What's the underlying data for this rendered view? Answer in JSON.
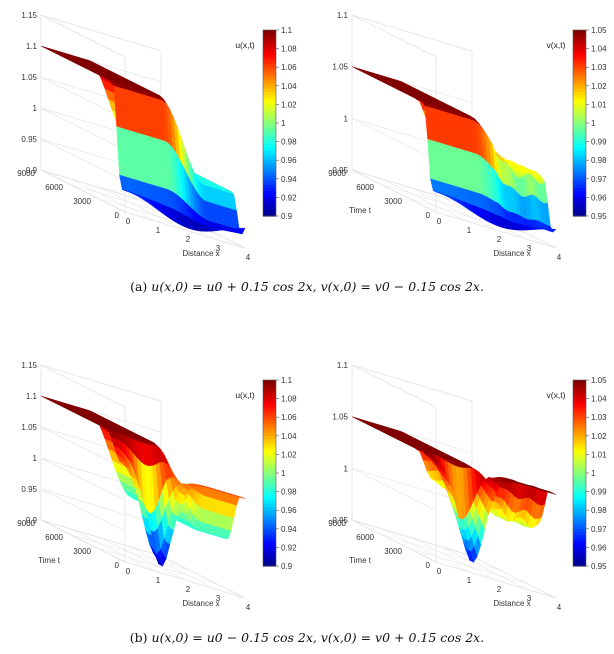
{
  "captions": [
    {
      "tag": "(a)",
      "math": "u(x,0) = u0 + 0.15 cos 2x, v(x,0) = v0 − 0.15 cos 2x."
    },
    {
      "tag": "(b)",
      "math": "u(x,0) = u0 − 0.15 cos 2x, v(x,0) = v0 + 0.15 cos 2x."
    }
  ],
  "colormap": "jet",
  "chart_data": [
    {
      "type": "surface",
      "panel": "a-left",
      "title": "u(x,t)",
      "xlabel": "Distance x",
      "ylabel": "",
      "xticks": [
        "0",
        "1",
        "2",
        "3",
        "4"
      ],
      "yticks": [
        "0",
        "3000",
        "6000",
        "9000"
      ],
      "zticks": [
        "0.9",
        "0.95",
        "1",
        "1.05",
        "1.1",
        "1.15"
      ],
      "xlim": [
        0,
        4
      ],
      "tlim": [
        0,
        9000
      ],
      "zlim": [
        0.9,
        1.15
      ],
      "colorbar": {
        "range": [
          0.9,
          1.1
        ],
        "ticks": [
          "1.1",
          "1.08",
          "1.06",
          "1.04",
          "1.02",
          "1",
          "0.98",
          "0.96",
          "0.94",
          "0.92",
          "0.9"
        ]
      },
      "initial": "u0 + 0.15 cos 2x",
      "steady_peak": 1.1,
      "steady_trough": 0.98
    },
    {
      "type": "surface",
      "panel": "a-right",
      "title": "v(x,t)",
      "xlabel": "Distance x",
      "ylabel": "Time t",
      "xticks": [
        "0",
        "1",
        "2",
        "3",
        "4"
      ],
      "yticks": [
        "0",
        "3000",
        "6000",
        "9000"
      ],
      "zticks": [
        "0.95",
        "1",
        "1.05",
        "1.1"
      ],
      "xlim": [
        0,
        4
      ],
      "tlim": [
        0,
        9000
      ],
      "zlim": [
        0.95,
        1.1
      ],
      "colorbar": {
        "range": [
          0.95,
          1.05
        ],
        "ticks": [
          "1.05",
          "1.04",
          "1.03",
          "1.02",
          "1.01",
          "1",
          "0.99",
          "0.98",
          "0.97",
          "0.96",
          "0.95"
        ]
      },
      "initial": "v0 − 0.15 cos 2x",
      "steady_peak": 1.05,
      "steady_trough": 1.01
    },
    {
      "type": "surface",
      "panel": "b-left",
      "title": "u(x,t)",
      "xlabel": "Distance x",
      "ylabel": "Time t",
      "xticks": [
        "0",
        "1",
        "2",
        "3",
        "4"
      ],
      "yticks": [
        "0",
        "3000",
        "6000",
        "9000"
      ],
      "zticks": [
        "0.9",
        "0.95",
        "1",
        "1.05",
        "1.1",
        "1.15"
      ],
      "xlim": [
        0,
        4
      ],
      "tlim": [
        0,
        9000
      ],
      "zlim": [
        0.9,
        1.15
      ],
      "colorbar": {
        "range": [
          0.9,
          1.1
        ],
        "ticks": [
          "1.1",
          "1.08",
          "1.06",
          "1.04",
          "1.02",
          "1",
          "0.98",
          "0.96",
          "0.94",
          "0.92",
          "0.9"
        ]
      },
      "initial": "u0 − 0.15 cos 2x",
      "steady_peak": 1.1,
      "steady_trough": 0.98
    },
    {
      "type": "surface",
      "panel": "b-right",
      "title": "v(x,t)",
      "xlabel": "Distance x",
      "ylabel": "Time t",
      "xticks": [
        "0",
        "1",
        "2",
        "3",
        "4"
      ],
      "yticks": [
        "0",
        "3000",
        "6000",
        "9000"
      ],
      "zticks": [
        "0.95",
        "1",
        "1.05",
        "1.1"
      ],
      "xlim": [
        0,
        4
      ],
      "tlim": [
        0,
        9000
      ],
      "zlim": [
        0.95,
        1.1
      ],
      "colorbar": {
        "range": [
          0.95,
          1.05
        ],
        "ticks": [
          "1.05",
          "1.04",
          "1.03",
          "1.02",
          "1.01",
          "1",
          "0.99",
          "0.98",
          "0.97",
          "0.96",
          "0.95"
        ]
      },
      "initial": "v0 + 0.15 cos 2x",
      "steady_peak": 1.05,
      "steady_trough": 1.01
    }
  ]
}
